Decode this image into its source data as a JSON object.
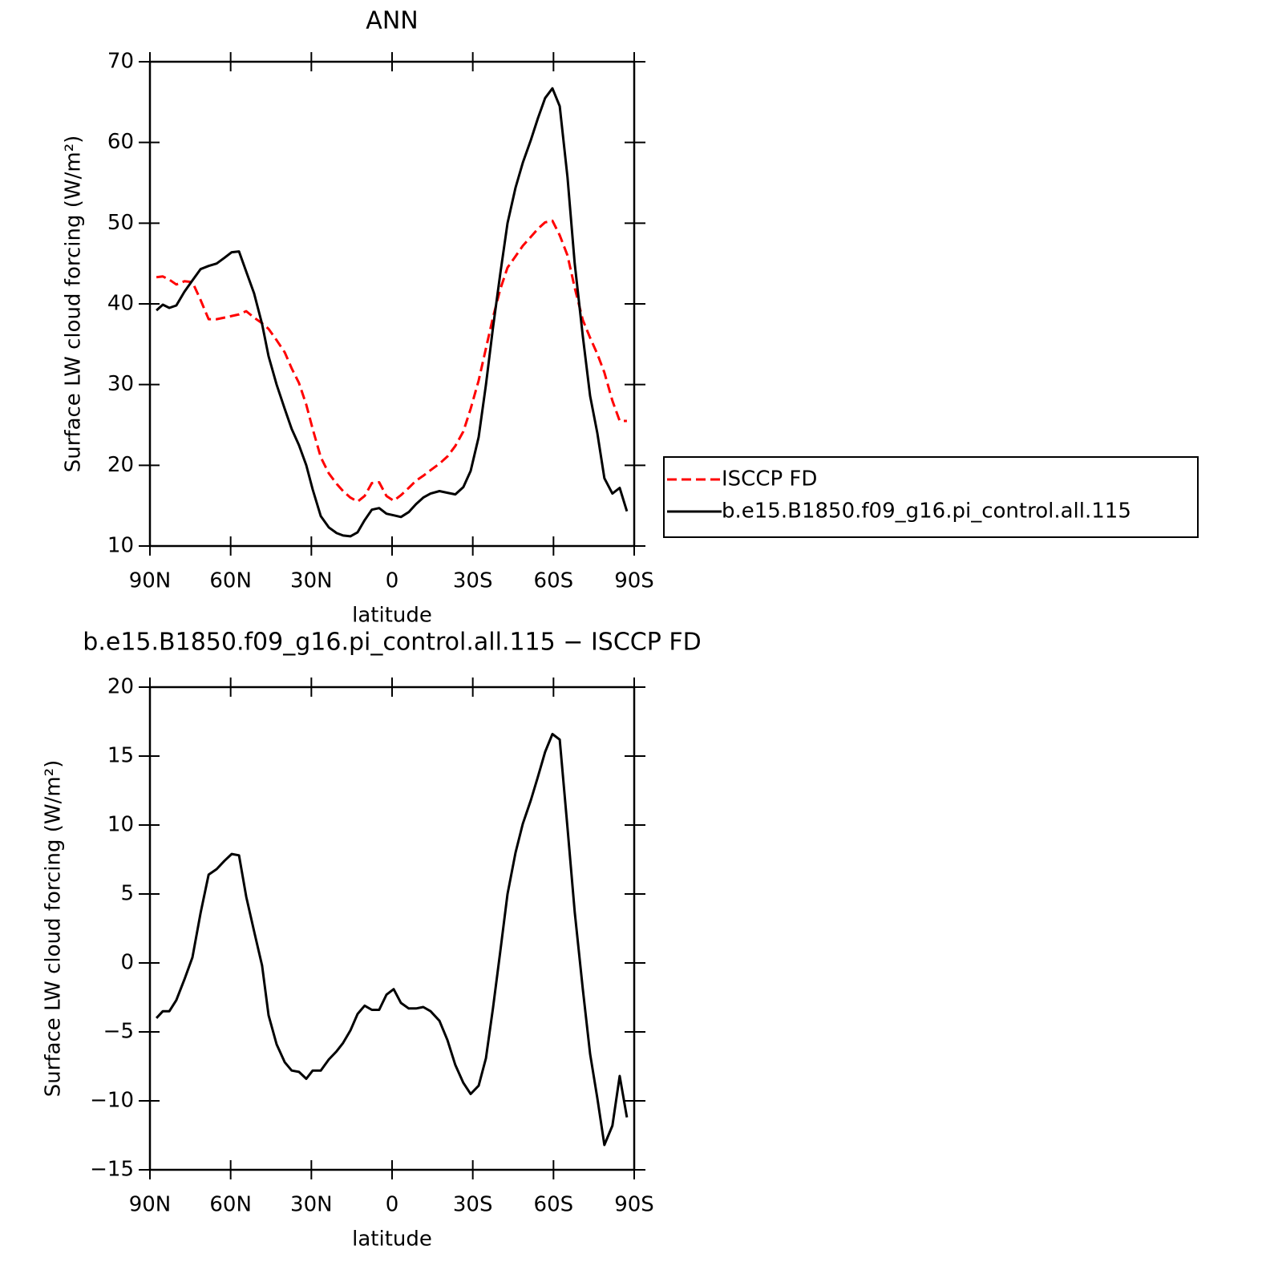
{
  "chart_data": [
    {
      "type": "line",
      "title": "ANN",
      "x_label": "latitude",
      "y_label": "Surface LW cloud forcing (W/m²)",
      "x": [
        87.6,
        85.2,
        82.8,
        80.2,
        77.2,
        74.2,
        71.2,
        68.2,
        65.2,
        62.3,
        59.6,
        56.9,
        54.2,
        51.3,
        48.3,
        45.9,
        42.9,
        39.9,
        37.3,
        34.6,
        31.9,
        29.5,
        26.5,
        23.5,
        20.6,
        18.2,
        15.5,
        12.8,
        10.2,
        7.5,
        4.8,
        2.1,
        -0.6,
        -3.3,
        -6.2,
        -8.9,
        -11.6,
        -14.3,
        -17.6,
        -20.6,
        -23.5,
        -26.5,
        -29.2,
        -32.2,
        -34.9,
        -37.5,
        -40.2,
        -42.9,
        -45.9,
        -48.6,
        -51.6,
        -54.2,
        -56.9,
        -59.6,
        -62.3,
        -65.2,
        -67.9,
        -70.9,
        -73.6,
        -76.3,
        -78.9,
        -81.9,
        -84.6,
        -87.3
      ],
      "series": [
        {
          "name": "ISCCP FD",
          "color": "#ff0000",
          "dash": true,
          "values": [
            43.3,
            43.4,
            43,
            42.4,
            42.8,
            42.7,
            40.5,
            38.1,
            38.1,
            38.3,
            38.5,
            38.7,
            39.1,
            38.3,
            37.6,
            36.9,
            35.5,
            34,
            32,
            30.2,
            27.5,
            24.5,
            21,
            19,
            17.7,
            16.8,
            16,
            15.5,
            16.2,
            17.8,
            17.9,
            16.2,
            15.6,
            16.3,
            17.2,
            18.1,
            18.7,
            19.4,
            20.2,
            21.1,
            22.4,
            24.2,
            27,
            30.5,
            34.5,
            38.3,
            41.8,
            44.5,
            45.9,
            47.2,
            48.3,
            49.3,
            50.1,
            50.3,
            48.5,
            46,
            42,
            38,
            35.8,
            33.8,
            31.5,
            28,
            25.5,
            25.5
          ]
        },
        {
          "name": "b.e15.B1850.f09_g16.pi_control.all.115",
          "color": "#000000",
          "dash": false,
          "values": [
            39.2,
            39.9,
            39.5,
            39.8,
            41.5,
            42.9,
            44.3,
            44.7,
            45,
            45.7,
            46.4,
            46.5,
            44,
            41.3,
            37.5,
            33.5,
            30,
            27,
            24.5,
            22.5,
            20,
            17,
            13.7,
            12.3,
            11.6,
            11.3,
            11.2,
            11.7,
            13.2,
            14.5,
            14.7,
            14,
            13.8,
            13.6,
            14.2,
            15.2,
            16,
            16.5,
            16.8,
            16.6,
            16.4,
            17.3,
            19.3,
            23.5,
            30,
            37,
            43.7,
            50,
            54.4,
            57.5,
            60.3,
            63,
            65.5,
            66.7,
            64.5,
            55.7,
            45,
            36,
            28.6,
            24,
            18.4,
            16.5,
            17.2,
            14.3
          ]
        }
      ],
      "xlim": [
        90,
        -90
      ],
      "xticks": [
        {
          "value": 90,
          "label": "90N"
        },
        {
          "value": 60,
          "label": "60N"
        },
        {
          "value": 30,
          "label": "30N"
        },
        0,
        {
          "value": -30,
          "label": "30S"
        },
        {
          "value": -60,
          "label": "60S"
        },
        {
          "value": -90,
          "label": "90S"
        }
      ],
      "ylim": [
        10,
        70
      ],
      "yticks": [
        10,
        20,
        30,
        40,
        50,
        60,
        70
      ],
      "legend": "right"
    },
    {
      "type": "line",
      "title": "b.e15.B1850.f09_g16.pi_control.all.115 − ISCCP FD",
      "x_label": "latitude",
      "y_label": "Surface LW cloud forcing (W/m²)",
      "x": [
        87.6,
        85.2,
        82.8,
        80.2,
        77.2,
        74.2,
        71.2,
        68.2,
        65.2,
        62.3,
        59.6,
        56.9,
        54.2,
        51.3,
        48.3,
        45.9,
        42.9,
        39.9,
        37.3,
        34.6,
        31.9,
        29.5,
        26.5,
        23.5,
        20.6,
        18.2,
        15.5,
        12.8,
        10.2,
        7.5,
        4.8,
        2.1,
        -0.6,
        -3.3,
        -6.2,
        -8.9,
        -11.6,
        -14.3,
        -17.6,
        -20.6,
        -23.5,
        -26.5,
        -29.2,
        -32.2,
        -34.9,
        -37.5,
        -40.2,
        -42.9,
        -45.9,
        -48.6,
        -51.6,
        -54.2,
        -56.9,
        -59.6,
        -62.3,
        -65.2,
        -67.9,
        -70.9,
        -73.6,
        -76.3,
        -78.9,
        -81.9,
        -84.6,
        -87.3
      ],
      "series": [
        {
          "color": "#000000",
          "dash": false,
          "values": [
            -4,
            -3.5,
            -3.5,
            -2.7,
            -1.2,
            0.4,
            3.6,
            6.4,
            6.8,
            7.4,
            7.9,
            7.8,
            4.8,
            2.3,
            -0.2,
            -3.8,
            -5.9,
            -7.2,
            -7.8,
            -7.9,
            -8.4,
            -7.8,
            -7.8,
            -7,
            -6.4,
            -5.8,
            -4.9,
            -3.7,
            -3.1,
            -3.4,
            -3.4,
            -2.3,
            -1.9,
            -2.9,
            -3.3,
            -3.3,
            -3.2,
            -3.5,
            -4.2,
            -5.6,
            -7.4,
            -8.7,
            -9.5,
            -8.9,
            -6.9,
            -3.3,
            0.8,
            5,
            8,
            10.1,
            11.8,
            13.5,
            15.3,
            16.6,
            16.2,
            9.8,
            3.7,
            -1.9,
            -6.6,
            -9.8,
            -13.2,
            -11.8,
            -8.2,
            -11.2
          ]
        }
      ],
      "xlim": [
        90,
        -90
      ],
      "xticks": [
        {
          "value": 90,
          "label": "90N"
        },
        {
          "value": 60,
          "label": "60N"
        },
        {
          "value": 30,
          "label": "30N"
        },
        0,
        {
          "value": -30,
          "label": "30S"
        },
        {
          "value": -60,
          "label": "60S"
        },
        {
          "value": -90,
          "label": "90S"
        }
      ],
      "ylim": [
        -15,
        20
      ],
      "yticks": [
        {
          "value": -15,
          "label": "−15"
        },
        {
          "value": -10,
          "label": "−10"
        },
        {
          "value": -5,
          "label": "−5"
        },
        0,
        5,
        10,
        15,
        20
      ]
    }
  ]
}
